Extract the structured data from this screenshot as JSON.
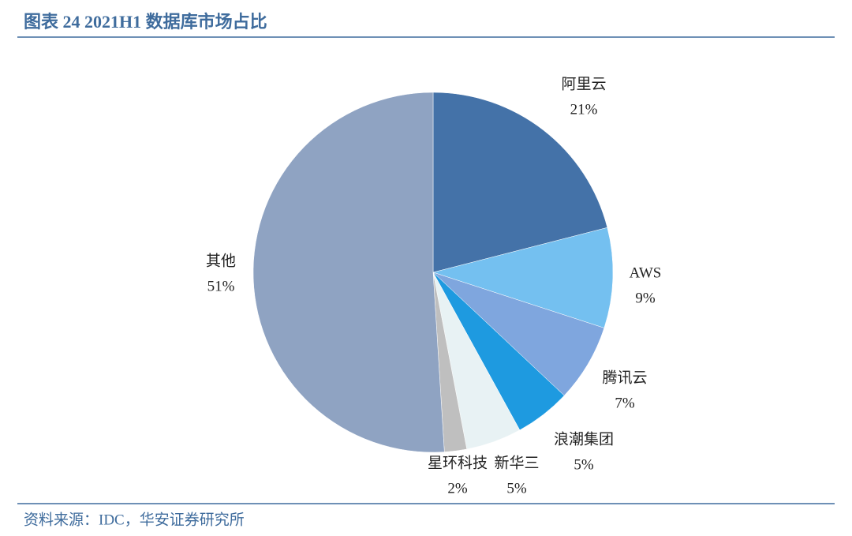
{
  "chart_data": {
    "type": "pie",
    "title": "图表 24 2021H1 数据库市场占比",
    "source": "资料来源：IDC，华安证券研究所",
    "categories": [
      "阿里云",
      "AWS",
      "腾讯云",
      "浪潮集团",
      "新华三",
      "星环科技",
      "其他"
    ],
    "values": [
      21,
      9,
      7,
      5,
      5,
      2,
      51
    ],
    "value_labels": [
      "21%",
      "9%",
      "7%",
      "5%",
      "5%",
      "2%",
      "51%"
    ],
    "colors": [
      "#4472a8",
      "#74c0f0",
      "#7fa6de",
      "#1e9ae0",
      "#e8f2f4",
      "#bfbfbf",
      "#8fa3c2"
    ]
  }
}
